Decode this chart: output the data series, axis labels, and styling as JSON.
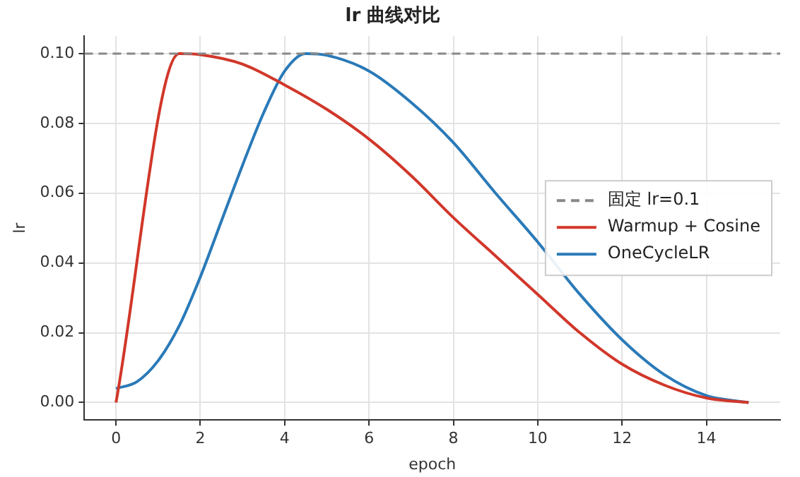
{
  "chart_data": {
    "type": "line",
    "title": "lr 曲线对比",
    "xlabel": "epoch",
    "ylabel": "lr",
    "xlim": [
      -0.75,
      15.75
    ],
    "xticks": [
      0,
      2,
      4,
      6,
      8,
      10,
      12,
      14
    ],
    "ylim": [
      -0.005,
      0.105
    ],
    "yticks": [
      {
        "value": 0,
        "label": "0.00"
      },
      {
        "value": 0.02,
        "label": "0.02"
      },
      {
        "value": 0.04,
        "label": "0.04"
      },
      {
        "value": 0.06,
        "label": "0.06"
      },
      {
        "value": 0.08,
        "label": "0.08"
      },
      {
        "value": 0.1,
        "label": "0.10"
      }
    ],
    "grid": true,
    "legend": "right",
    "marker": "none",
    "line_style": "solid",
    "ref_lines": [
      {
        "axis": "y",
        "value": 0.1,
        "label": "固定 lr=0.1",
        "color": "#888888",
        "line_style": "dashed"
      }
    ],
    "series": [
      {
        "name": "Warmup + Cosine",
        "color": "#d1372a",
        "x": [
          0,
          1.5,
          2,
          3,
          4,
          5,
          6,
          7,
          8,
          9,
          10,
          11,
          12,
          13,
          14,
          15
        ],
        "values": [
          0,
          0.1,
          0.0997,
          0.097,
          0.091,
          0.084,
          0.0755,
          0.065,
          0.053,
          0.042,
          0.031,
          0.02,
          0.011,
          0.005,
          0.0013,
          0
        ]
      },
      {
        "name": "OneCycleLR",
        "color": "#2a7ab8",
        "x": [
          0,
          0.5,
          1,
          1.5,
          2,
          2.5,
          3,
          3.5,
          4,
          4.5,
          5,
          6,
          7,
          8,
          9,
          10,
          11,
          12,
          13,
          14,
          15
        ],
        "values": [
          0.004,
          0.006,
          0.012,
          0.022,
          0.036,
          0.052,
          0.068,
          0.083,
          0.095,
          0.1,
          0.0995,
          0.095,
          0.086,
          0.0745,
          0.06,
          0.046,
          0.031,
          0.018,
          0.008,
          0.002,
          0
        ]
      }
    ]
  }
}
